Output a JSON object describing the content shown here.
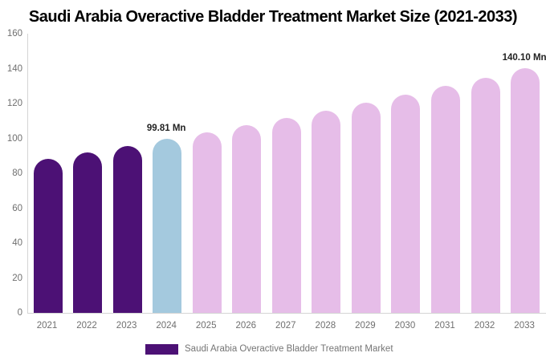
{
  "title": "Saudi Arabia Overactive Bladder Treatment Market Size (2021-2033)",
  "legend": {
    "label": "Saudi Arabia Overactive Bladder Treatment Market",
    "swatch_color": "#4C1175"
  },
  "colors": {
    "historical_bar": "#4C1175",
    "base_year_bar": "#A4C9DE",
    "forecast_bar": "#E6BDE8",
    "axis_line": "#D4D4D4",
    "tick_label": "#6F6F6F",
    "annotation_text": "#222222",
    "title_text": "#000000",
    "background": "#FFFFFF"
  },
  "chart_data": {
    "type": "bar",
    "title": "Saudi Arabia Overactive Bladder Treatment Market Size (2021-2033)",
    "unit": "Mn",
    "categories": [
      "2021",
      "2022",
      "2023",
      "2024",
      "2025",
      "2026",
      "2027",
      "2028",
      "2029",
      "2030",
      "2031",
      "2032",
      "2033"
    ],
    "values": [
      88.4,
      92.0,
      95.5,
      99.81,
      103.6,
      107.6,
      111.8,
      116.0,
      120.5,
      125.1,
      129.9,
      134.9,
      140.1
    ],
    "bar_roles": [
      "historical",
      "historical",
      "historical",
      "base_year",
      "forecast",
      "forecast",
      "forecast",
      "forecast",
      "forecast",
      "forecast",
      "forecast",
      "forecast",
      "forecast"
    ],
    "annotations": [
      {
        "category": "2024",
        "text": "99.81 Mn"
      },
      {
        "category": "2033",
        "text": "140.10 Mn"
      }
    ],
    "xlabel": "",
    "ylabel": "",
    "ylim": [
      0,
      160
    ],
    "yticks": [
      0,
      20,
      40,
      60,
      80,
      100,
      120,
      140,
      160
    ],
    "grid": false,
    "legend_position": "bottom",
    "legend_entries": [
      "Saudi Arabia Overactive Bladder Treatment Market"
    ]
  }
}
